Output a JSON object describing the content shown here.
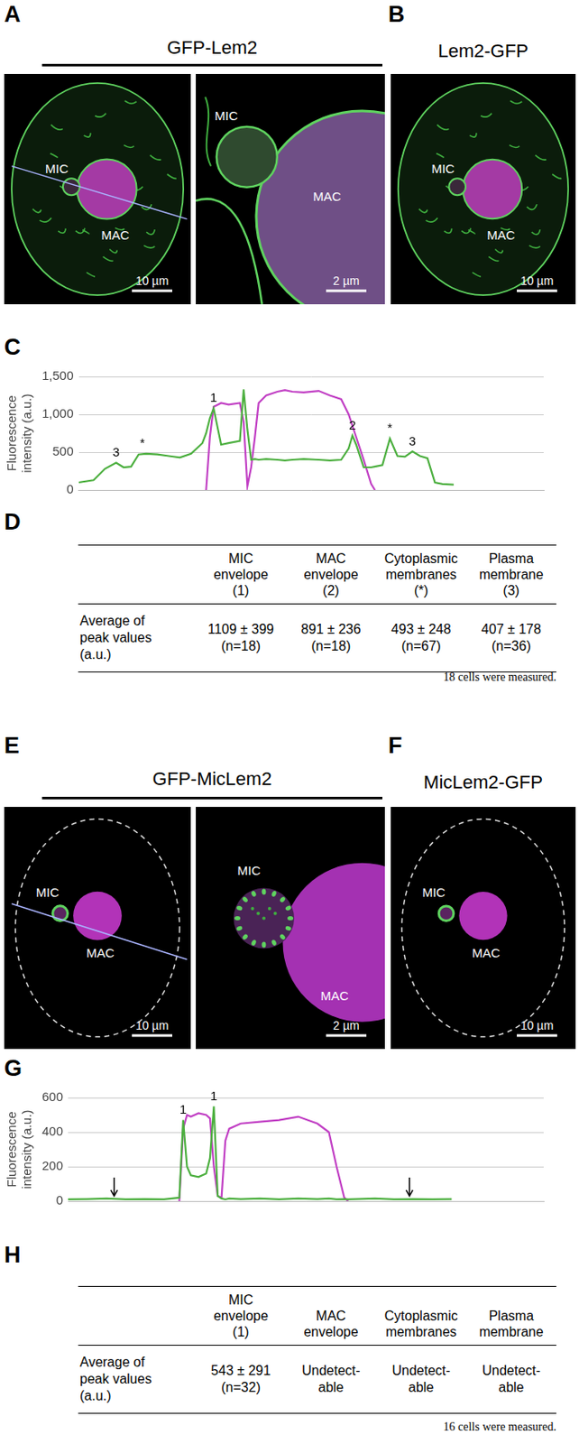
{
  "chart_data": [
    {
      "panel": "C",
      "type": "line",
      "ylabel": [
        "Fluorescence",
        "intensity (a.u.)"
      ],
      "x": [
        0,
        4,
        7,
        10,
        12,
        14,
        16,
        18,
        21,
        24,
        27,
        30,
        33,
        34,
        35,
        36,
        38,
        40,
        43,
        44,
        45,
        46,
        47,
        48,
        50,
        53,
        55,
        57,
        60,
        64,
        67,
        70,
        72,
        73,
        74,
        76,
        78,
        79,
        81,
        83,
        85,
        87,
        89,
        91,
        93,
        95,
        97,
        100
      ],
      "series": [
        {
          "color": "#4caf3f",
          "values": [
            100,
            130,
            280,
            360,
            300,
            310,
            470,
            480,
            470,
            450,
            430,
            480,
            620,
            750,
            950,
            1080,
            600,
            620,
            650,
            1330,
            800,
            400,
            410,
            400,
            410,
            400,
            390,
            400,
            410,
            400,
            390,
            400,
            550,
            720,
            600,
            300,
            300,
            310,
            330,
            680,
            450,
            440,
            510,
            450,
            420,
            100,
            80,
            70
          ]
        },
        {
          "color": "#c13fc4",
          "values": [
            null,
            null,
            null,
            null,
            null,
            null,
            null,
            null,
            null,
            null,
            null,
            null,
            null,
            0,
            700,
            1100,
            1150,
            1130,
            1150,
            900,
            50,
            300,
            700,
            1150,
            1250,
            1300,
            1320,
            1300,
            1290,
            1310,
            1250,
            1200,
            1000,
            850,
            700,
            400,
            80,
            0,
            null,
            null,
            null,
            null,
            null,
            null,
            null,
            null,
            null,
            null
          ]
        }
      ],
      "xlim": [
        0,
        124
      ],
      "ylim": [
        0,
        1500
      ],
      "yticks": [
        0,
        500,
        1000,
        1500
      ],
      "grid": true,
      "tick_labels": "y",
      "annotations": [
        {
          "text": "3",
          "x": 10,
          "y": 360
        },
        {
          "text": "*",
          "x": 17,
          "y": 480
        },
        {
          "text": "1",
          "x": 36,
          "y": 1080
        },
        {
          "text": "2",
          "x": 73,
          "y": 720
        },
        {
          "text": "*",
          "x": 83,
          "y": 680
        },
        {
          "text": "3",
          "x": 89,
          "y": 510
        }
      ]
    },
    {
      "panel": "G",
      "type": "line",
      "ylabel": [
        "Fluorescence",
        "intensity (a.u.)"
      ],
      "x": [
        0,
        5,
        10,
        15,
        20,
        25,
        29,
        30,
        31,
        32,
        34,
        36,
        37,
        38,
        39,
        40,
        41,
        42,
        45,
        50,
        55,
        60,
        65,
        68,
        70,
        72,
        73,
        75,
        80,
        85,
        90,
        95,
        100
      ],
      "series": [
        {
          "color": "#4caf3f",
          "values": [
            10,
            12,
            15,
            10,
            12,
            10,
            20,
            470,
            200,
            150,
            140,
            160,
            250,
            550,
            30,
            15,
            10,
            15,
            12,
            15,
            10,
            15,
            12,
            15,
            10,
            12,
            10,
            12,
            15,
            10,
            12,
            10,
            12
          ]
        },
        {
          "color": "#c13fc4",
          "values": [
            null,
            null,
            null,
            null,
            null,
            null,
            0,
            420,
            500,
            490,
            510,
            500,
            480,
            200,
            30,
            20,
            350,
            420,
            450,
            460,
            470,
            490,
            450,
            400,
            200,
            20,
            0,
            null,
            null,
            null,
            null,
            null,
            null
          ]
        }
      ],
      "xlim": [
        0,
        124
      ],
      "ylim": [
        0,
        600
      ],
      "yticks": [
        0,
        200,
        400,
        600
      ],
      "grid": true,
      "tick_labels": "y",
      "annotations": [
        {
          "text": "1",
          "x": 30,
          "y": 470
        },
        {
          "text": "1",
          "x": 38,
          "y": 550
        }
      ],
      "arrows": [
        {
          "x": 12,
          "y": 15
        },
        {
          "x": 89,
          "y": 15
        }
      ]
    }
  ],
  "image_panels": [
    {
      "label": "A",
      "title": "GFP-Lem2",
      "images": [
        {
          "labels": [
            "MIC",
            "MAC"
          ],
          "scale_bar": "10 µm"
        },
        {
          "labels": [
            "MIC",
            "MAC"
          ],
          "scale_bar": "2 µm"
        }
      ]
    },
    {
      "label": "B",
      "title": "Lem2-GFP",
      "images": [
        {
          "labels": [
            "MIC",
            "MAC"
          ],
          "scale_bar": "10 µm"
        }
      ]
    },
    {
      "label": "E",
      "title": "GFP-MicLem2",
      "images": [
        {
          "labels": [
            "MIC",
            "MAC"
          ],
          "scale_bar": "10 µm"
        },
        {
          "labels": [
            "MIC",
            "MAC"
          ],
          "scale_bar": "2 µm"
        }
      ]
    },
    {
      "label": "F",
      "title": "MicLem2-GFP",
      "images": [
        {
          "labels": [
            "MIC",
            "MAC"
          ],
          "scale_bar": "10 µm"
        }
      ]
    }
  ],
  "tables": [
    {
      "label": "D",
      "columns": [
        [
          "MIC",
          "envelope",
          "(1)"
        ],
        [
          "MAC",
          "envelope",
          "(2)"
        ],
        [
          "Cytoplasmic",
          "membranes",
          "(*)"
        ],
        [
          "Plasma",
          "membrane",
          "(3)"
        ]
      ],
      "row_label": [
        "Average of",
        "peak values",
        "(a.u.)"
      ],
      "cells": [
        [
          "1109 ± 399",
          "(n=18)"
        ],
        [
          "891 ± 236",
          "(n=18)"
        ],
        [
          "493 ± 248",
          "(n=67)"
        ],
        [
          "407 ± 178",
          "(n=36)"
        ]
      ],
      "footnote": "18 cells were measured."
    },
    {
      "label": "H",
      "columns": [
        [
          "MIC",
          "envelope",
          "(1)"
        ],
        [
          "MAC",
          "envelope"
        ],
        [
          "Cytoplasmic",
          "membranes"
        ],
        [
          "Plasma",
          "membrane"
        ]
      ],
      "row_label": [
        "Average of",
        "peak values",
        "(a.u.)"
      ],
      "cells": [
        [
          "543 ± 291",
          "(n=32)"
        ],
        [
          "Undetect-",
          "able"
        ],
        [
          "Undetect-",
          "able"
        ],
        [
          "Undetect-",
          "able"
        ]
      ],
      "footnote": "16 cells were measured."
    }
  ]
}
